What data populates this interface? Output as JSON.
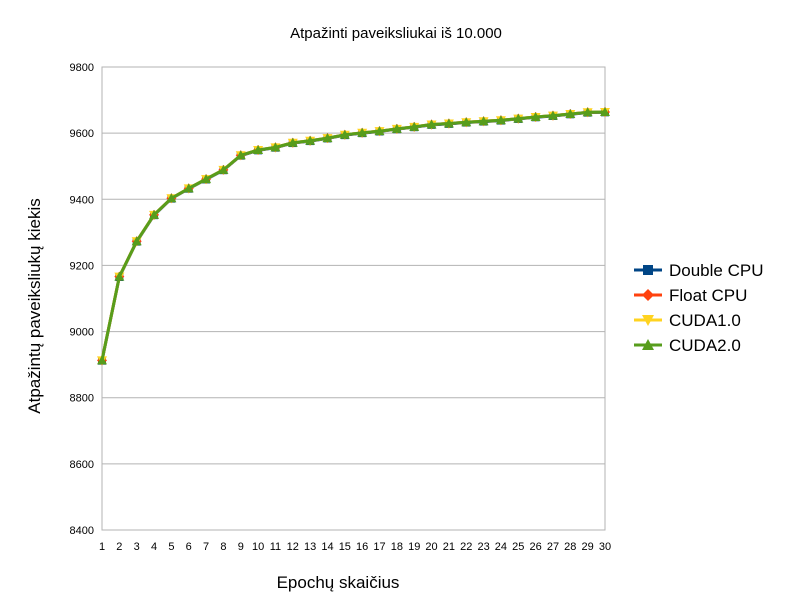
{
  "chart_data": {
    "type": "line",
    "title": "Atpažinti paveiksliukai iš 10.000",
    "xlabel": "Epochų skaičius",
    "ylabel": "Atpažintų paveiksliukų kiekis",
    "x": [
      1,
      2,
      3,
      4,
      5,
      6,
      7,
      8,
      9,
      10,
      11,
      12,
      13,
      14,
      15,
      16,
      17,
      18,
      19,
      20,
      21,
      22,
      23,
      24,
      25,
      26,
      27,
      28,
      29,
      30
    ],
    "ylim": [
      8400,
      9800
    ],
    "yticks": [
      8400,
      8600,
      8800,
      9000,
      9200,
      9400,
      9600,
      9800
    ],
    "grid": true,
    "legend_position": "right",
    "series": [
      {
        "name": "Double CPU",
        "color": "#004586",
        "marker": "square",
        "values": [
          8912,
          9165,
          9272,
          9352,
          9402,
          9432,
          9460,
          9488,
          9532,
          9548,
          9556,
          9570,
          9576,
          9584,
          9594,
          9600,
          9605,
          9612,
          9618,
          9625,
          9628,
          9632,
          9635,
          9638,
          9643,
          9648,
          9652,
          9657,
          9662,
          9663
        ]
      },
      {
        "name": "Float CPU",
        "color": "#ff420e",
        "marker": "diamond",
        "values": [
          8913,
          9166,
          9273,
          9353,
          9403,
          9433,
          9461,
          9489,
          9533,
          9549,
          9557,
          9571,
          9577,
          9585,
          9595,
          9601,
          9606,
          9613,
          9619,
          9626,
          9629,
          9633,
          9636,
          9639,
          9644,
          9649,
          9653,
          9658,
          9663,
          9664
        ]
      },
      {
        "name": "CUDA1.0",
        "color": "#ffd320",
        "marker": "triangle-down",
        "values": [
          8913,
          9166,
          9273,
          9353,
          9403,
          9433,
          9461,
          9489,
          9533,
          9549,
          9557,
          9571,
          9577,
          9585,
          9595,
          9601,
          9606,
          9613,
          9619,
          9626,
          9629,
          9633,
          9636,
          9639,
          9644,
          9649,
          9653,
          9658,
          9663,
          9664
        ]
      },
      {
        "name": "CUDA2.0",
        "color": "#579d1c",
        "marker": "triangle-up",
        "values": [
          8913,
          9166,
          9273,
          9353,
          9403,
          9433,
          9461,
          9489,
          9533,
          9549,
          9557,
          9571,
          9577,
          9585,
          9595,
          9601,
          9606,
          9613,
          9619,
          9626,
          9629,
          9633,
          9636,
          9639,
          9644,
          9649,
          9653,
          9658,
          9663,
          9664
        ]
      }
    ]
  }
}
